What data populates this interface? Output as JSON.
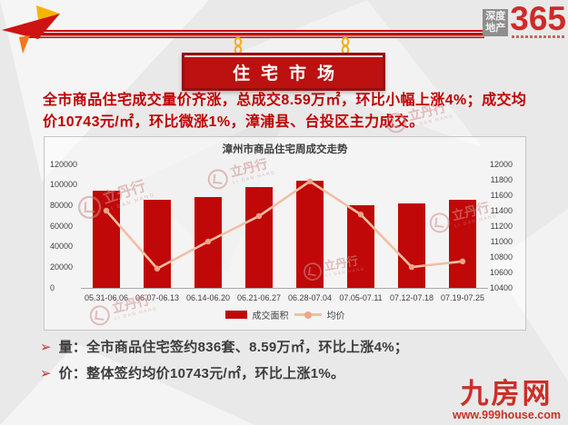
{
  "header": {
    "brand_logo": {
      "line1": "深度",
      "line2": "地产",
      "number": "365"
    },
    "plaque_title": "住宅市场"
  },
  "summary": {
    "text": "全市商品住宅成交量价齐涨，总成交8.59万㎡，环比小幅上涨4%；成交均价10743元/㎡，环比微涨1%，漳浦县、台投区主力成交。"
  },
  "chart_data": {
    "type": "bar",
    "title": "漳州市商品住宅周成交走势",
    "categories": [
      "05.31-06.06",
      "06.07-06.13",
      "06.14-06.20",
      "06.21-06.27",
      "06.28-07.04",
      "07.05-07.11",
      "07.12-07.18",
      "07.19-07.25"
    ],
    "series": [
      {
        "name": "成交面积",
        "type": "bar",
        "axis": "left",
        "color": "#c00808",
        "values": [
          94000,
          86000,
          88000,
          98000,
          104000,
          80000,
          82500,
          85900
        ]
      },
      {
        "name": "均价",
        "type": "line",
        "axis": "right",
        "color": "#f2bfa4",
        "marker_color": "#eda58b",
        "values": [
          11400,
          10650,
          11000,
          11330,
          11780,
          11350,
          10670,
          10743
        ]
      }
    ],
    "left_axis": {
      "min": 0,
      "max": 120000,
      "ticks": [
        "120000",
        "100000",
        "80000",
        "60000",
        "40000",
        "20000",
        "0"
      ]
    },
    "right_axis": {
      "min": 10400,
      "max": 12000,
      "ticks": [
        "12000",
        "11800",
        "11600",
        "11400",
        "11200",
        "11000",
        "10800",
        "10600",
        "10400"
      ]
    },
    "legend": [
      "成交面积",
      "均价"
    ],
    "legend_position": "bottom",
    "grid": false
  },
  "bullets": {
    "marker": "➢",
    "items": [
      {
        "text": "量：全市商品住宅签约836套、8.59万㎡，环比上涨4%；"
      },
      {
        "text": "价：整体签约均价10743元/㎡，环比上涨1%。"
      }
    ]
  },
  "watermark": {
    "text": "立丹行",
    "sub": "LI DAN HANG"
  },
  "footer": {
    "site_name": "九房网",
    "site_url": "www.999house.com"
  }
}
